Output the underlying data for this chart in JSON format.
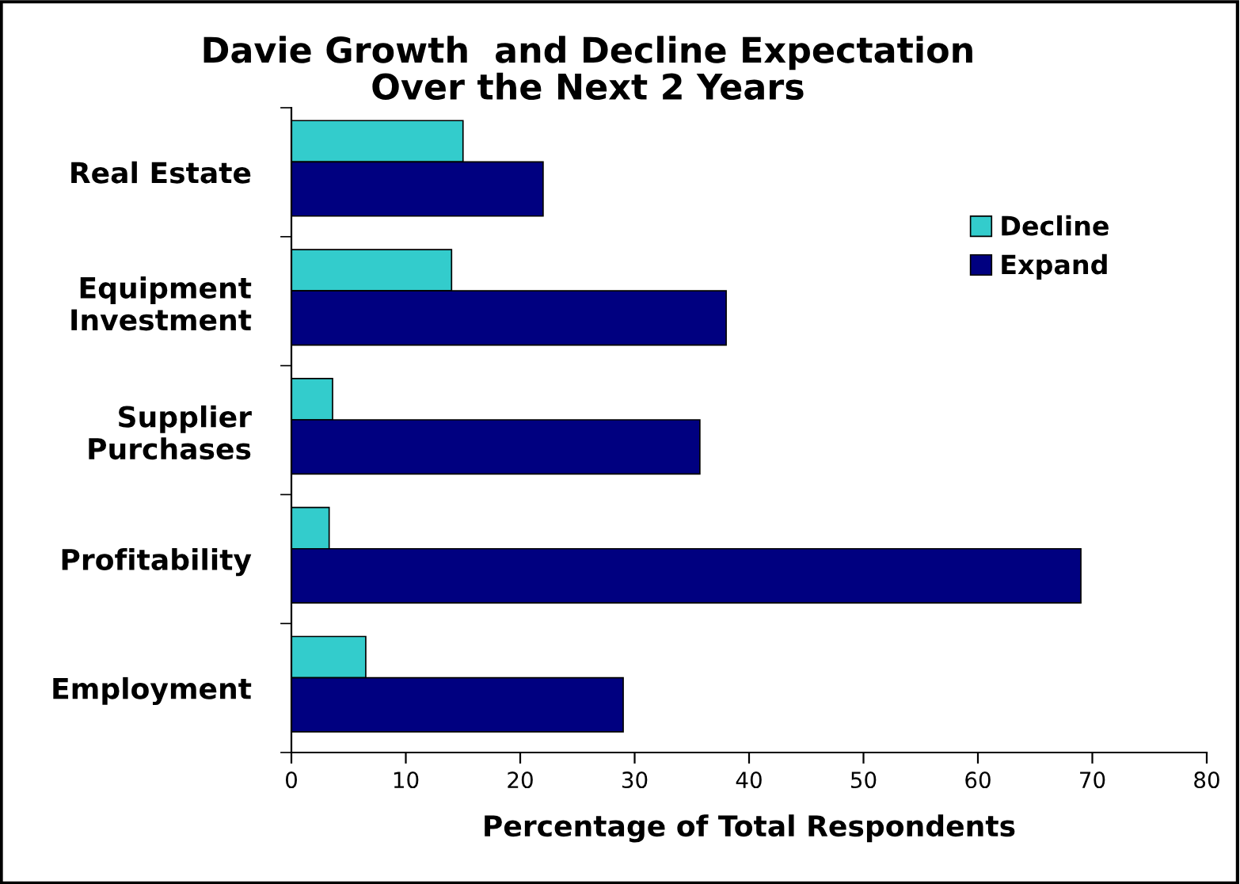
{
  "chart_data": {
    "type": "bar",
    "orientation": "horizontal",
    "title": "Davie Growth  and Decline Expectation\nOver the Next 2 Years",
    "xlabel": "Percentage of Total Respondents",
    "categories": [
      "Real Estate",
      "Equipment\nInvestment",
      "Supplier\nPurchases",
      "Profitability",
      "Employment"
    ],
    "series": [
      {
        "name": "Decline",
        "color": "#33cccc",
        "values": [
          15,
          14,
          3.6,
          3.3,
          6.5
        ]
      },
      {
        "name": "Expand",
        "color": "#000080",
        "values": [
          22,
          38,
          35.7,
          69,
          29
        ]
      }
    ],
    "xlim": [
      0,
      80
    ],
    "xticks": [
      0,
      10,
      20,
      30,
      40,
      50,
      60,
      70,
      80
    ],
    "grid": false,
    "legend": "top right"
  }
}
